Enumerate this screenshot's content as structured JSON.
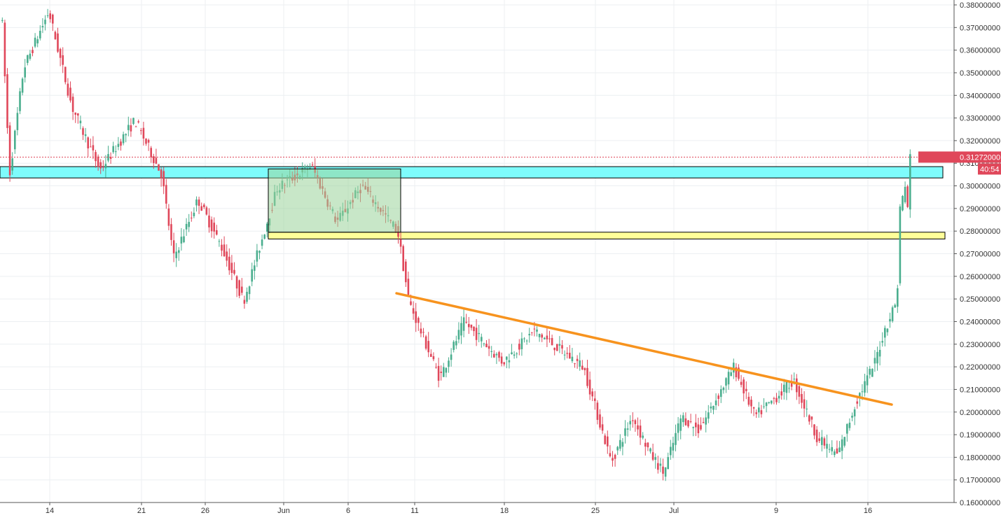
{
  "chart_data": {
    "type": "candlestick",
    "title": "",
    "xlabel": "",
    "ylabel": "",
    "ylim": [
      0.1595,
      0.3805
    ],
    "grid": true,
    "colors": {
      "up": "#4aae8e",
      "down": "#e0475a",
      "support_zone": "#7efcfc",
      "breakout_zone": "#ffff99",
      "range_box": "#9bd49b",
      "trendline": "#f7931e",
      "price_label_bg": "#e0475a",
      "grid": "#eceff2"
    },
    "x_tick_labels": [
      "14",
      "21",
      "26",
      "Jun",
      "6",
      "11",
      "18",
      "25",
      "Jul",
      "9",
      "16"
    ],
    "y_tick_labels": [
      "0.38000000",
      "0.37000000",
      "0.36000000",
      "0.35000000",
      "0.34000000",
      "0.33000000",
      "0.32000000",
      "0.31000000",
      "0.30000000",
      "0.29000000",
      "0.28000000",
      "0.27000000",
      "0.26000000",
      "0.25000000",
      "0.24000000",
      "0.23000000",
      "0.22000000",
      "0.21000000",
      "0.20000000",
      "0.19000000",
      "0.18000000",
      "0.17000000",
      "0.16000000"
    ],
    "current_price_label": "0.31272000",
    "countdown_label": "40:54",
    "current_price": 0.31272,
    "zones": [
      {
        "name": "support-resistance-zone",
        "from": 0.3035,
        "to": 0.3085
      },
      {
        "name": "breakout-zone",
        "from": 0.2765,
        "to": 0.2795
      },
      {
        "name": "consolidation-range",
        "from": 0.2795,
        "to": 0.3075
      }
    ],
    "trendline": {
      "from_price": 0.2525,
      "to_price": 0.2033
    },
    "keypoints": [
      {
        "label": "May 10",
        "price": 0.375
      },
      {
        "label": "May 11",
        "price": 0.305
      },
      {
        "label": "May 12",
        "price": 0.352
      },
      {
        "label": "May 14",
        "price": 0.377
      },
      {
        "label": "May 16",
        "price": 0.335
      },
      {
        "label": "May 18",
        "price": 0.307
      },
      {
        "label": "May 20",
        "price": 0.329
      },
      {
        "label": "May 22",
        "price": 0.305
      },
      {
        "label": "May 24",
        "price": 0.268
      },
      {
        "label": "May 26",
        "price": 0.294
      },
      {
        "label": "May 28",
        "price": 0.272
      },
      {
        "label": "May 30",
        "price": 0.249
      },
      {
        "label": "May 31",
        "price": 0.27
      },
      {
        "label": "Jun 2",
        "price": 0.299
      },
      {
        "label": "Jun 3",
        "price": 0.309
      },
      {
        "label": "Jun 5",
        "price": 0.284
      },
      {
        "label": "Jun 7",
        "price": 0.3
      },
      {
        "label": "Jun 10",
        "price": 0.28
      },
      {
        "label": "Jun 11",
        "price": 0.249
      },
      {
        "label": "Jun 12",
        "price": 0.238
      },
      {
        "label": "Jun 13",
        "price": 0.215
      },
      {
        "label": "Jun 15",
        "price": 0.24
      },
      {
        "label": "Jun 18",
        "price": 0.222
      },
      {
        "label": "Jun 20",
        "price": 0.236
      },
      {
        "label": "Jun 22",
        "price": 0.22
      },
      {
        "label": "Jun 24",
        "price": 0.178
      },
      {
        "label": "Jun 26",
        "price": 0.198
      },
      {
        "label": "Jun 27",
        "price": 0.182
      },
      {
        "label": "Jun 29",
        "price": 0.173
      },
      {
        "label": "Jun 30",
        "price": 0.198
      },
      {
        "label": "Jul 2",
        "price": 0.192
      },
      {
        "label": "Jul 3",
        "price": 0.22
      },
      {
        "label": "Jul 5",
        "price": 0.198
      },
      {
        "label": "Jul 7",
        "price": 0.205
      },
      {
        "label": "Jul 9",
        "price": 0.214
      },
      {
        "label": "Jul 11",
        "price": 0.188
      },
      {
        "label": "Jul 12",
        "price": 0.181
      },
      {
        "label": "Jul 14",
        "price": 0.205
      },
      {
        "label": "Jul 15",
        "price": 0.221
      },
      {
        "label": "Jul 16",
        "price": 0.236
      },
      {
        "label": "Jul 17",
        "price": 0.25
      },
      {
        "label": "Jul 18",
        "price": 0.29
      },
      {
        "label": "Jul 18 (2)",
        "price": 0.3
      },
      {
        "label": "Jul 19",
        "price": 0.285
      },
      {
        "label": "Jul 19 (2)",
        "price": 0.3127
      }
    ]
  }
}
